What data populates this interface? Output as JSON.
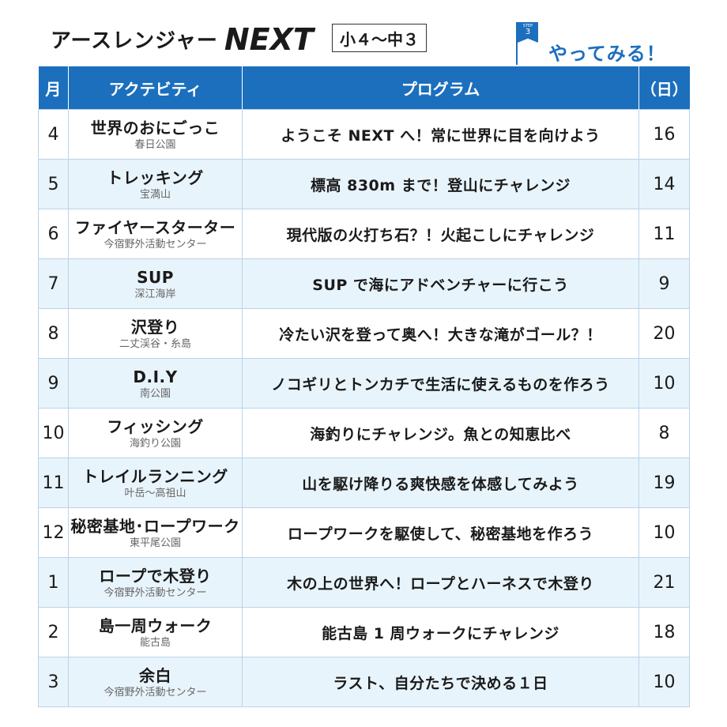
{
  "header": {
    "title": "アースレンジャー",
    "title_next": "NEXT",
    "grade": "小４〜中３",
    "step_label": "STEP",
    "step_number": "3",
    "cta": "やってみる！",
    "accent_color": "#1c6fbd"
  },
  "table": {
    "headers": {
      "month": "月",
      "activity": "アクテビティ",
      "program": "プログラム",
      "day": "（日）"
    },
    "rows": [
      {
        "month": "4",
        "activity": "世界のおにごっこ",
        "place": "春日公園",
        "program": "ようこそ NEXT へ！常に世界に目を向けよう",
        "day": "16"
      },
      {
        "month": "5",
        "activity": "トレッキング",
        "place": "宝満山",
        "program": "標高 830m まで！登山にチャレンジ",
        "day": "14"
      },
      {
        "month": "6",
        "activity": "ファイヤースターター",
        "place": "今宿野外活動センター",
        "program": "現代版の火打ち石？！火起こしにチャレンジ",
        "day": "11"
      },
      {
        "month": "7",
        "activity": "SUP",
        "place": "深江海岸",
        "program": "SUP で海にアドベンチャーに行こう",
        "day": "9"
      },
      {
        "month": "8",
        "activity": "沢登り",
        "place": "二丈渓谷・糸島",
        "program": "冷たい沢を登って奥へ！大きな滝がゴール？！",
        "day": "20"
      },
      {
        "month": "9",
        "activity": "D.I.Y",
        "place": "南公園",
        "program": "ノコギリとトンカチで生活に使えるものを作ろう",
        "day": "10"
      },
      {
        "month": "10",
        "activity": "フィッシング",
        "place": "海釣り公園",
        "program": "海釣りにチャレンジ。魚との知恵比べ",
        "day": "8"
      },
      {
        "month": "11",
        "activity": "トレイルランニング",
        "place": "叶岳〜高祖山",
        "program": "山を駆け降りる爽快感を体感してみよう",
        "day": "19"
      },
      {
        "month": "12",
        "activity": "秘密基地･ロープワーク",
        "place": "東平尾公園",
        "program": "ロープワークを駆使して、秘密基地を作ろう",
        "day": "10"
      },
      {
        "month": "1",
        "activity": "ロープで木登り",
        "place": "今宿野外活動センター",
        "program": "木の上の世界へ！ロープとハーネスで木登り",
        "day": "21"
      },
      {
        "month": "2",
        "activity": "島一周ウォーク",
        "place": "能古島",
        "program": "能古島 1 周ウォークにチャレンジ",
        "day": "18"
      },
      {
        "month": "3",
        "activity": "余白",
        "place": "今宿野外活動センター",
        "program": "ラスト、自分たちで決める１日",
        "day": "10"
      }
    ]
  }
}
